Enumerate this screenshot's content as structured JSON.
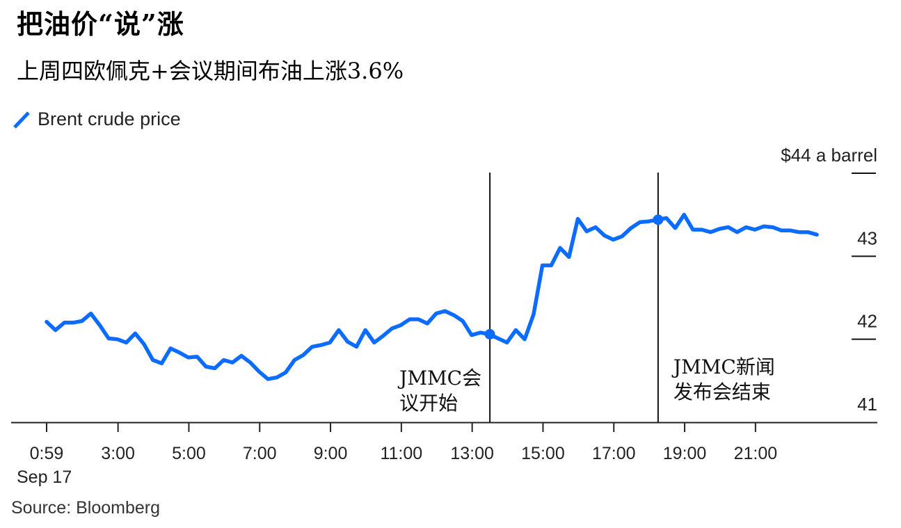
{
  "header": {
    "title": "把油价“说”涨",
    "subtitle": "上周四欧佩克+会议期间布油上涨3.6%"
  },
  "legend": {
    "label": "Brent crude price",
    "color": "#0b6cff"
  },
  "axis": {
    "y_unit_label": "$44 a barrel",
    "y_ticks": [
      {
        "value": 44,
        "label": "$44 a barrel"
      },
      {
        "value": 43,
        "label": "43"
      },
      {
        "value": 42,
        "label": "42"
      },
      {
        "value": 41,
        "label": "41"
      }
    ],
    "x_ticks": [
      "0:59",
      "3:00",
      "5:00",
      "7:00",
      "9:00",
      "11:00",
      "13:00",
      "15:00",
      "17:00",
      "19:00",
      "21:00"
    ],
    "x_date_label": "Sep 17"
  },
  "annotations": [
    {
      "time": "13:30",
      "line1": "JMMC会",
      "line2": "议开始"
    },
    {
      "time": "18:15",
      "line1": "JMMC新闻",
      "line2": "发布会结束"
    }
  ],
  "source": "Source: Bloomberg",
  "chart_data": {
    "type": "line",
    "title": "把油价“说”涨",
    "subtitle": "上周四欧佩克+会议期间布油上涨3.6%",
    "xlabel": "",
    "ylabel": "$ a barrel",
    "ylim": [
      41,
      44
    ],
    "grid": false,
    "legend_position": "top-left",
    "x_tick_labels": [
      "0:59",
      "3:00",
      "5:00",
      "7:00",
      "9:00",
      "11:00",
      "13:00",
      "15:00",
      "17:00",
      "19:00",
      "21:00"
    ],
    "x_date": "Sep 17",
    "annotations": [
      {
        "x": "13:30",
        "text": "JMMC会议开始",
        "marker_value": 42.06
      },
      {
        "x": "18:15",
        "text": "JMMC新闻发布会结束",
        "marker_value": 43.44
      }
    ],
    "series": [
      {
        "name": "Brent crude price",
        "color": "#0b6cff",
        "x": [
          "0:59",
          "1:14",
          "1:29",
          "1:44",
          "1:59",
          "2:14",
          "2:29",
          "2:44",
          "2:59",
          "3:14",
          "3:29",
          "3:44",
          "3:59",
          "4:14",
          "4:29",
          "4:44",
          "4:59",
          "5:14",
          "5:29",
          "5:44",
          "5:59",
          "6:14",
          "6:29",
          "6:44",
          "6:59",
          "7:14",
          "7:29",
          "7:44",
          "7:59",
          "8:14",
          "8:29",
          "8:44",
          "8:59",
          "9:14",
          "9:29",
          "9:44",
          "9:59",
          "10:14",
          "10:29",
          "10:44",
          "10:59",
          "11:14",
          "11:29",
          "11:44",
          "11:59",
          "12:14",
          "12:29",
          "12:44",
          "12:59",
          "13:14",
          "13:29",
          "13:44",
          "13:59",
          "14:14",
          "14:29",
          "14:44",
          "14:59",
          "15:14",
          "15:29",
          "15:44",
          "15:59",
          "16:14",
          "16:29",
          "16:44",
          "16:59",
          "17:14",
          "17:29",
          "17:44",
          "17:59",
          "18:14",
          "18:29",
          "18:44",
          "18:59",
          "19:14",
          "19:29",
          "19:44",
          "19:59",
          "20:14",
          "20:29",
          "20:44",
          "20:59",
          "21:14",
          "21:29",
          "21:44",
          "21:59",
          "22:14",
          "22:29",
          "22:44"
        ],
        "values": [
          42.21,
          42.11,
          42.2,
          42.2,
          42.22,
          42.31,
          42.17,
          42.01,
          42.0,
          41.96,
          42.07,
          41.94,
          41.75,
          41.71,
          41.89,
          41.84,
          41.78,
          41.79,
          41.67,
          41.65,
          41.75,
          41.72,
          41.8,
          41.72,
          41.61,
          41.52,
          41.54,
          41.6,
          41.75,
          41.81,
          41.91,
          41.93,
          41.96,
          42.11,
          41.97,
          41.91,
          42.11,
          41.96,
          42.04,
          42.13,
          42.17,
          42.24,
          42.24,
          42.19,
          42.31,
          42.34,
          42.29,
          42.22,
          42.05,
          42.08,
          42.06,
          42.01,
          41.96,
          42.11,
          42.0,
          42.3,
          42.89,
          42.89,
          43.1,
          42.99,
          43.45,
          43.3,
          43.35,
          43.25,
          43.2,
          43.24,
          43.34,
          43.41,
          43.42,
          43.44,
          43.46,
          43.34,
          43.5,
          43.32,
          43.32,
          43.29,
          43.33,
          43.35,
          43.29,
          43.35,
          43.32,
          43.36,
          43.35,
          43.31,
          43.31,
          43.29,
          43.29,
          43.26
        ]
      }
    ]
  }
}
